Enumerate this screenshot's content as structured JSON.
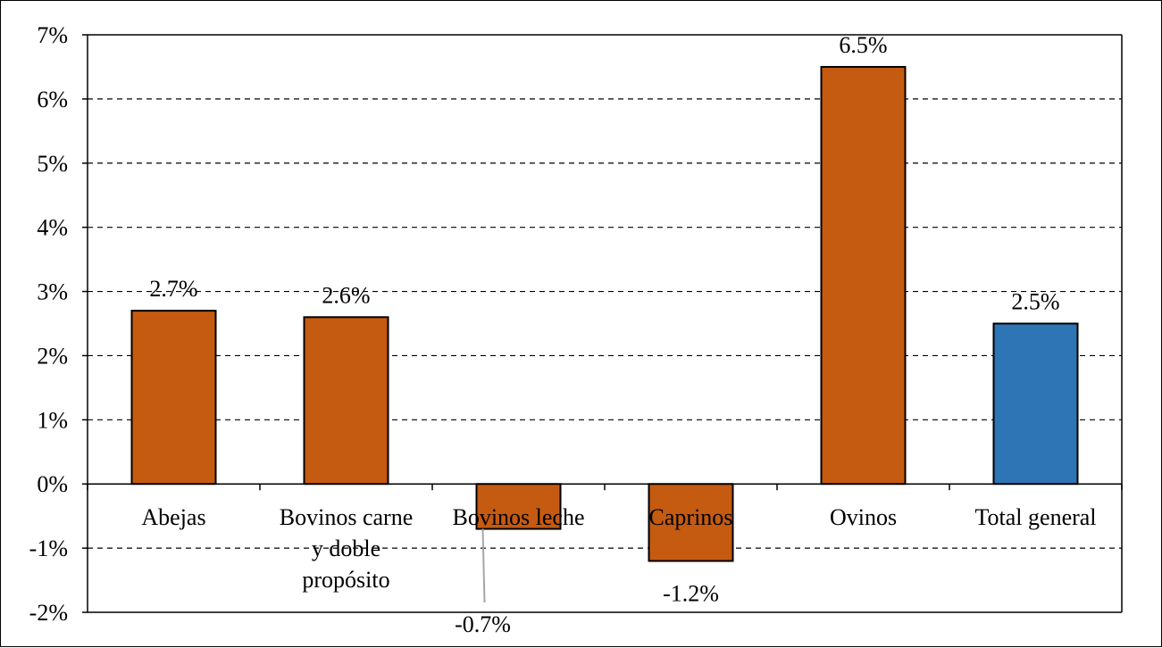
{
  "chart_data": {
    "type": "bar",
    "title": "",
    "xlabel": "",
    "ylabel": "",
    "ylim": [
      -2,
      7
    ],
    "yticks": [
      -2,
      -1,
      0,
      1,
      2,
      3,
      4,
      5,
      6,
      7
    ],
    "ytick_labels": [
      "-2%",
      "-1%",
      "0%",
      "1%",
      "2%",
      "3%",
      "4%",
      "5%",
      "6%",
      "7%"
    ],
    "grid": "horizontal dashed",
    "legend": "none",
    "categories": [
      [
        "Abejas"
      ],
      [
        "Bovinos carne",
        "y doble",
        "propósito"
      ],
      [
        "Bovinos leche"
      ],
      [
        "Caprinos"
      ],
      [
        "Ovinos"
      ],
      [
        "Total general"
      ]
    ],
    "values": [
      2.7,
      2.6,
      -0.7,
      -1.2,
      6.5,
      2.5
    ],
    "data_labels": [
      "2.7%",
      "2.6%",
      "-0.7%",
      "-1.2%",
      "6.5%",
      "2.5%"
    ],
    "colors": [
      "#C55A11",
      "#C55A11",
      "#C55A11",
      "#C55A11",
      "#C55A11",
      "#2E75B6"
    ]
  }
}
